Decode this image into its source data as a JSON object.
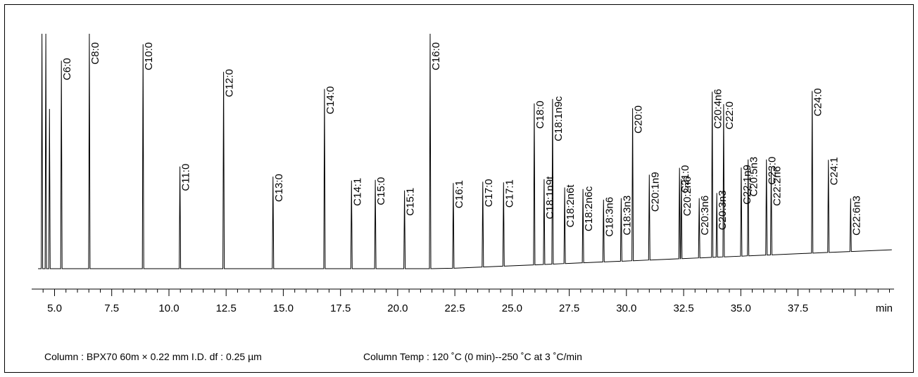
{
  "chart_data": {
    "type": "line",
    "title": "",
    "xlabel": "",
    "x_unit": "min",
    "ylabel": "",
    "xlim": [
      4.0,
      41.7
    ],
    "x_ticks": [
      "5.0",
      "7.5",
      "10.0",
      "12.5",
      "15.0",
      "17.5",
      "20.0",
      "22.5",
      "25.0",
      "27.5",
      "30.0",
      "32.5",
      "35.0",
      "37.5"
    ],
    "grid": false,
    "line_color": "#000000",
    "solvent_peaks": [
      {
        "x": 4.45,
        "y": 100
      },
      {
        "x": 4.62,
        "y": 100
      },
      {
        "x": 4.78,
        "y": 68
      }
    ],
    "peaks": [
      {
        "name": "C6:0",
        "x": 5.3,
        "y": 88.5
      },
      {
        "name": "C8:0",
        "x": 6.52,
        "y": 100
      },
      {
        "name": "C10:0",
        "x": 8.87,
        "y": 95.5
      },
      {
        "name": "C11:0",
        "x": 10.48,
        "y": 43.5
      },
      {
        "name": "C12:0",
        "x": 12.39,
        "y": 83.8
      },
      {
        "name": "C13:0",
        "x": 14.55,
        "y": 39.2
      },
      {
        "name": "C14:0",
        "x": 16.8,
        "y": 76.5
      },
      {
        "name": "C14:1",
        "x": 17.98,
        "y": 37.5
      },
      {
        "name": "C15:0",
        "x": 19.02,
        "y": 37.8
      },
      {
        "name": "C15:1",
        "x": 20.3,
        "y": 33.3
      },
      {
        "name": "C16:0",
        "x": 21.42,
        "y": 100
      },
      {
        "name": "C16:1",
        "x": 22.43,
        "y": 36.3
      },
      {
        "name": "C17:0",
        "x": 23.72,
        "y": 36.3
      },
      {
        "name": "C17:1",
        "x": 24.63,
        "y": 35.7
      },
      {
        "name": "C18:0",
        "x": 25.97,
        "y": 68.7
      },
      {
        "name": "C18:1n9t",
        "x": 26.4,
        "y": 36.3
      },
      {
        "name": "C18:1n9c",
        "x": 26.77,
        "y": 70.3
      },
      {
        "name": "C18:2n6t",
        "x": 27.3,
        "y": 32.4
      },
      {
        "name": "C18:2n6c",
        "x": 28.1,
        "y": 31.4
      },
      {
        "name": "C18:3n6",
        "x": 29.0,
        "y": 26.5
      },
      {
        "name": "C18:3n3",
        "x": 29.77,
        "y": 26.8
      },
      {
        "name": "C20:0",
        "x": 30.27,
        "y": 64.9
      },
      {
        "name": "C20:1n9",
        "x": 31.0,
        "y": 36.3
      },
      {
        "name": "C21:0",
        "x": 32.32,
        "y": 38.7
      },
      {
        "name": "C20:2n6",
        "x": 32.4,
        "y": 33.9
      },
      {
        "name": "C20:3n6",
        "x": 33.18,
        "y": 25.4
      },
      {
        "name": "C20:4n6",
        "x": 33.75,
        "y": 70.5
      },
      {
        "name": "C20:3n3",
        "x": 33.95,
        "y": 27.3
      },
      {
        "name": "C22:0",
        "x": 34.25,
        "y": 65.0
      },
      {
        "name": "C22:1n9",
        "x": 35.02,
        "y": 37.7
      },
      {
        "name": "C20:5n3",
        "x": 35.32,
        "y": 41.0
      },
      {
        "name": "C23:0",
        "x": 36.12,
        "y": 40.7
      },
      {
        "name": "C22:2n6",
        "x": 36.33,
        "y": 36.6
      },
      {
        "name": "C24:0",
        "x": 38.12,
        "y": 69.0
      },
      {
        "name": "C24:1",
        "x": 38.83,
        "y": 39.4
      },
      {
        "name": "C22:6n3",
        "x": 39.8,
        "y": 22.6
      }
    ]
  },
  "footer": {
    "column": "Column : BPX70  60m × 0.22 mm I.D.  df : 0.25 µm",
    "temperature": "Column Temp : 120 ˚C (0 min)--250 ˚C at 3 ˚C/min"
  }
}
